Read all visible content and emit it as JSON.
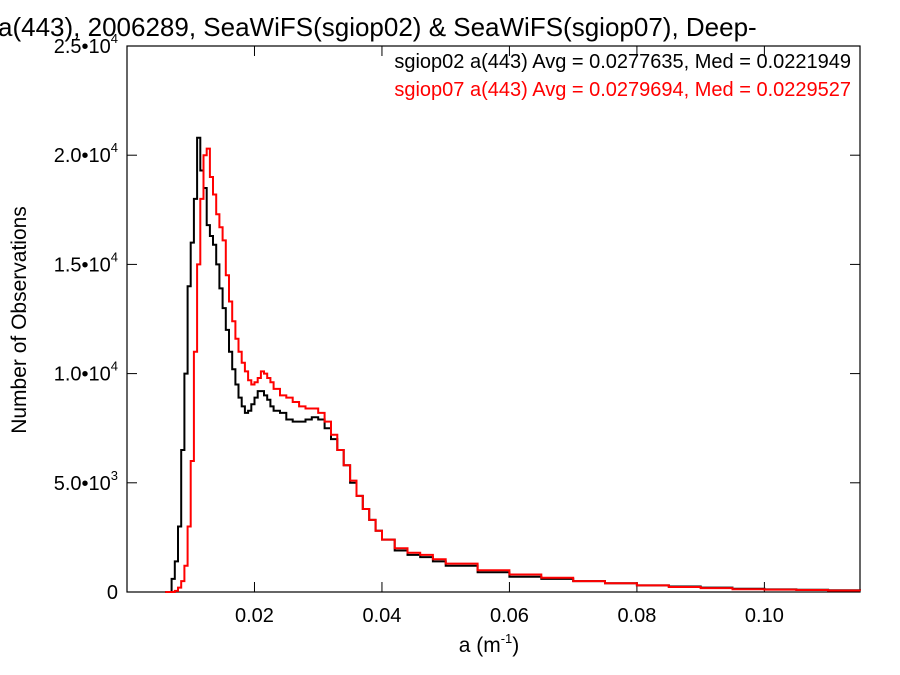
{
  "chart_data": {
    "type": "line",
    "title": "a(443), 2006289, SeaWiFS(sgiop02) & SeaWiFS(sgiop07), Deep-",
    "xlabel": "a (m",
    "xlabel_sup": "-1",
    "xlabel_end": ")",
    "ylabel": "Number of Observations",
    "xlim": [
      0.0,
      0.115
    ],
    "ylim": [
      0,
      25000
    ],
    "grid": false,
    "legend_position": "top-right",
    "x_ticks": [
      {
        "value": 0.02,
        "label": "0.02"
      },
      {
        "value": 0.04,
        "label": "0.04"
      },
      {
        "value": 0.06,
        "label": "0.06"
      },
      {
        "value": 0.08,
        "label": "0.08"
      },
      {
        "value": 0.1,
        "label": "0.10"
      }
    ],
    "y_ticks": [
      {
        "value": 0,
        "mant": "0",
        "exp": ""
      },
      {
        "value": 5000,
        "mant": "5.0•10",
        "exp": "3"
      },
      {
        "value": 10000,
        "mant": "1.0•10",
        "exp": "4"
      },
      {
        "value": 15000,
        "mant": "1.5•10",
        "exp": "4"
      },
      {
        "value": 20000,
        "mant": "2.0•10",
        "exp": "4"
      },
      {
        "value": 25000,
        "mant": "2.5•10",
        "exp": "4"
      }
    ],
    "series": [
      {
        "name": "sgiop02",
        "legend": "sgiop02 a(443) Avg = 0.0277635, Med = 0.0221949",
        "color": "#000000",
        "points": [
          [
            0.006,
            0
          ],
          [
            0.0065,
            0
          ],
          [
            0.007,
            600
          ],
          [
            0.0075,
            1400
          ],
          [
            0.008,
            3000
          ],
          [
            0.0085,
            6500
          ],
          [
            0.009,
            10000
          ],
          [
            0.0095,
            14000
          ],
          [
            0.01,
            16000
          ],
          [
            0.0105,
            18000
          ],
          [
            0.011,
            20800
          ],
          [
            0.0115,
            19300
          ],
          [
            0.012,
            18500
          ],
          [
            0.0125,
            16800
          ],
          [
            0.013,
            16300
          ],
          [
            0.0135,
            15900
          ],
          [
            0.014,
            15000
          ],
          [
            0.0145,
            13900
          ],
          [
            0.015,
            13000
          ],
          [
            0.0155,
            12000
          ],
          [
            0.016,
            11000
          ],
          [
            0.0165,
            10200
          ],
          [
            0.017,
            9500
          ],
          [
            0.0175,
            8900
          ],
          [
            0.018,
            8500
          ],
          [
            0.0185,
            8200
          ],
          [
            0.019,
            8300
          ],
          [
            0.0195,
            8600
          ],
          [
            0.02,
            8900
          ],
          [
            0.0205,
            9200
          ],
          [
            0.021,
            9200
          ],
          [
            0.0215,
            9000
          ],
          [
            0.022,
            8800
          ],
          [
            0.0225,
            8500
          ],
          [
            0.023,
            8300
          ],
          [
            0.024,
            8200
          ],
          [
            0.025,
            7900
          ],
          [
            0.026,
            7800
          ],
          [
            0.027,
            7800
          ],
          [
            0.028,
            7900
          ],
          [
            0.029,
            8000
          ],
          [
            0.03,
            7900
          ],
          [
            0.031,
            7500
          ],
          [
            0.032,
            7000
          ],
          [
            0.033,
            6500
          ],
          [
            0.034,
            5800
          ],
          [
            0.035,
            5000
          ],
          [
            0.036,
            4400
          ],
          [
            0.037,
            3800
          ],
          [
            0.038,
            3300
          ],
          [
            0.039,
            2800
          ],
          [
            0.04,
            2400
          ],
          [
            0.042,
            1900
          ],
          [
            0.044,
            1700
          ],
          [
            0.046,
            1600
          ],
          [
            0.048,
            1400
          ],
          [
            0.05,
            1200
          ],
          [
            0.055,
            900
          ],
          [
            0.06,
            700
          ],
          [
            0.065,
            600
          ],
          [
            0.07,
            500
          ],
          [
            0.075,
            400
          ],
          [
            0.08,
            300
          ],
          [
            0.085,
            250
          ],
          [
            0.09,
            200
          ],
          [
            0.095,
            150
          ],
          [
            0.1,
            120
          ],
          [
            0.105,
            100
          ],
          [
            0.11,
            80
          ],
          [
            0.115,
            70
          ]
        ]
      },
      {
        "name": "sgiop07",
        "legend": "sgiop07 a(443) Avg = 0.0279694, Med = 0.0229527",
        "color": "#ff0000",
        "points": [
          [
            0.006,
            0
          ],
          [
            0.007,
            0
          ],
          [
            0.0075,
            50
          ],
          [
            0.008,
            200
          ],
          [
            0.0085,
            500
          ],
          [
            0.009,
            1200
          ],
          [
            0.0095,
            3000
          ],
          [
            0.01,
            6000
          ],
          [
            0.0105,
            11000
          ],
          [
            0.011,
            15000
          ],
          [
            0.0115,
            18000
          ],
          [
            0.012,
            20000
          ],
          [
            0.0125,
            20300
          ],
          [
            0.013,
            19000
          ],
          [
            0.0135,
            18200
          ],
          [
            0.014,
            17300
          ],
          [
            0.0145,
            16700
          ],
          [
            0.015,
            16100
          ],
          [
            0.0155,
            14500
          ],
          [
            0.016,
            13300
          ],
          [
            0.0165,
            12400
          ],
          [
            0.017,
            11600
          ],
          [
            0.0175,
            11000
          ],
          [
            0.018,
            10500
          ],
          [
            0.0185,
            10100
          ],
          [
            0.019,
            9700
          ],
          [
            0.0195,
            9500
          ],
          [
            0.02,
            9600
          ],
          [
            0.0205,
            9800
          ],
          [
            0.021,
            10100
          ],
          [
            0.0215,
            10000
          ],
          [
            0.022,
            9800
          ],
          [
            0.0225,
            9600
          ],
          [
            0.023,
            9300
          ],
          [
            0.024,
            9000
          ],
          [
            0.025,
            8900
          ],
          [
            0.026,
            8700
          ],
          [
            0.027,
            8500
          ],
          [
            0.028,
            8400
          ],
          [
            0.029,
            8400
          ],
          [
            0.03,
            8200
          ],
          [
            0.031,
            7800
          ],
          [
            0.032,
            7200
          ],
          [
            0.033,
            6500
          ],
          [
            0.034,
            5800
          ],
          [
            0.035,
            5100
          ],
          [
            0.036,
            4400
          ],
          [
            0.037,
            3800
          ],
          [
            0.038,
            3300
          ],
          [
            0.039,
            2800
          ],
          [
            0.04,
            2400
          ],
          [
            0.042,
            2000
          ],
          [
            0.044,
            1800
          ],
          [
            0.046,
            1700
          ],
          [
            0.048,
            1500
          ],
          [
            0.05,
            1300
          ],
          [
            0.055,
            1000
          ],
          [
            0.06,
            800
          ],
          [
            0.065,
            650
          ],
          [
            0.07,
            500
          ],
          [
            0.075,
            400
          ],
          [
            0.08,
            300
          ],
          [
            0.085,
            230
          ],
          [
            0.09,
            180
          ],
          [
            0.095,
            130
          ],
          [
            0.1,
            110
          ],
          [
            0.105,
            90
          ],
          [
            0.11,
            70
          ],
          [
            0.115,
            60
          ]
        ]
      }
    ]
  }
}
